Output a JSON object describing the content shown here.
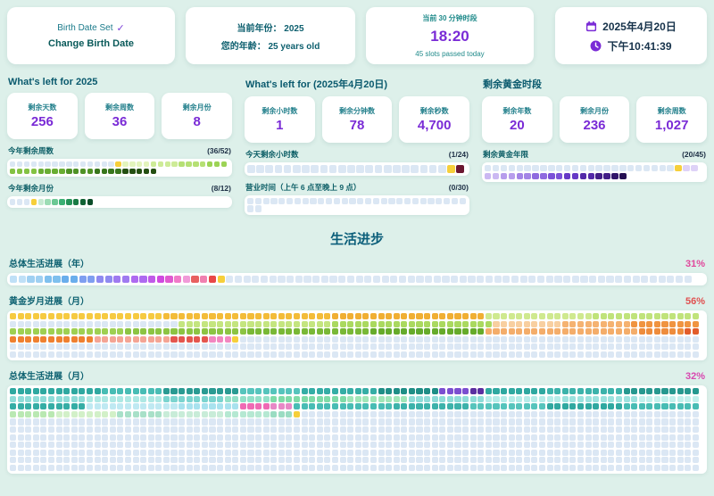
{
  "colors": {
    "background": "#ddf0ea",
    "accent_purple": "#7a2bd6",
    "teal_text": "#0d6670",
    "pale_cell": "#dbe7f4",
    "current_yellow": "#f6cf3a"
  },
  "top": {
    "birth_card": {
      "status": "Birth Date Set",
      "check": "✓",
      "button": "Change Birth Date"
    },
    "year_card": {
      "line1_label": "当前年份：",
      "line1_value": "2025",
      "line2_label": "您的年龄：",
      "line2_value": "25 years old"
    },
    "slot_card": {
      "label": "当前 30 分钟时段",
      "time": "18:20",
      "sub": "45 slots passed today"
    },
    "date_card": {
      "date": "2025年4月20日",
      "time": "下午10:41:39"
    }
  },
  "sections": [
    {
      "title": "What's left for 2025",
      "stats": [
        {
          "label": "剩余天数",
          "value": "256"
        },
        {
          "label": "剩余周数",
          "value": "36"
        },
        {
          "label": "剩余月份",
          "value": "8"
        }
      ],
      "grid1_label": "今年剩余周数",
      "grid1_count": "(36/52)",
      "grid2_label": "今年剩余月份",
      "grid2_count": "(8/12)"
    },
    {
      "title": "What's left for (2025年4月20日)",
      "stats": [
        {
          "label": "剩余小时数",
          "value": "1"
        },
        {
          "label": "剩余分钟数",
          "value": "78"
        },
        {
          "label": "剩余秒数",
          "value": "4,700"
        }
      ],
      "grid1_label": "今天剩余小时数",
      "grid1_count": "(1/24)",
      "grid2_label": "营业时间（上午 6 点至晚上 9 点）",
      "grid2_count": "(0/30)"
    },
    {
      "title": "剩余黄金时段",
      "stats": [
        {
          "label": "剩余年数",
          "value": "20"
        },
        {
          "label": "剩余月份",
          "value": "236"
        },
        {
          "label": "剩余周数",
          "value": "1,027"
        }
      ],
      "grid1_label": "剩余黄金年限",
      "grid1_count": "(20/45)"
    }
  ],
  "life": {
    "title": "生活进步",
    "blocks": [
      {
        "label": "总体生活进展（年）",
        "percent": "31%",
        "percent_color": "#e0489c"
      },
      {
        "label": "黄金岁月进展（月）",
        "percent": "56%",
        "percent_color": "#e05050"
      },
      {
        "label": "总体生活进展（月）",
        "percent": "32%",
        "percent_color": "#d848b0"
      }
    ]
  },
  "grids": {
    "weeks": {
      "rows": [
        [
          [
            15,
            "#dbe7f4"
          ],
          [
            1,
            "#f6cf3a"
          ],
          [
            4,
            "#e3f4bc"
          ],
          [
            4,
            "#cdeb97"
          ],
          [
            4,
            "#b5e074"
          ],
          [
            3,
            "#9cd355"
          ]
        ],
        [
          [
            4,
            "#83c243"
          ],
          [
            4,
            "#69ad33"
          ],
          [
            4,
            "#4f9226"
          ],
          [
            4,
            "#38761c"
          ],
          [
            5,
            "#244f12"
          ]
        ]
      ]
    },
    "months": {
      "rows": [
        [
          [
            3,
            "#dbe7f4"
          ],
          [
            1,
            "#f6cf3a"
          ],
          [
            1,
            "#c6ead2"
          ],
          [
            1,
            "#9cdcb4"
          ],
          [
            1,
            "#6cc894"
          ],
          [
            1,
            "#3cb074"
          ],
          [
            1,
            "#259258"
          ],
          [
            1,
            "#187a44"
          ],
          [
            1,
            "#106234"
          ],
          [
            1,
            "#0b4c28"
          ]
        ]
      ]
    },
    "hours": {
      "rows": [
        [
          [
            22,
            "#dbe7f4"
          ],
          [
            1,
            "#f6cf3a"
          ],
          [
            1,
            "#6b1630"
          ]
        ]
      ]
    },
    "business": {
      "rows": [
        [
          [
            28,
            "#dbe7f4"
          ]
        ],
        [
          [
            2,
            "#dbe7f4"
          ]
        ]
      ]
    },
    "golden_years": {
      "rows": [
        [
          [
            24,
            "#dbe7f4"
          ],
          [
            1,
            "#f6cf3a"
          ],
          [
            2,
            "#ded2f7"
          ]
        ],
        [
          [
            2,
            "#cbb8f2"
          ],
          [
            2,
            "#b79dec"
          ],
          [
            2,
            "#a384e6"
          ],
          [
            2,
            "#8f6adf"
          ],
          [
            2,
            "#7b51d8"
          ],
          [
            2,
            "#6639c6"
          ],
          [
            2,
            "#5329a8"
          ],
          [
            2,
            "#421e87"
          ],
          [
            1,
            "#31156a"
          ],
          [
            1,
            "#250f52"
          ]
        ]
      ]
    },
    "life_years": {
      "rows": [
        [
          [
            2,
            "#bfe0f7"
          ],
          [
            2,
            "#9fd0f2"
          ],
          [
            2,
            "#7fc0ee"
          ],
          [
            2,
            "#6aaeec"
          ],
          [
            2,
            "#7f9ef0"
          ],
          [
            2,
            "#8f8af0"
          ],
          [
            2,
            "#9f7af0"
          ],
          [
            2,
            "#ae6af0"
          ],
          [
            1,
            "#c05ae8"
          ],
          [
            1,
            "#d04ae0"
          ],
          [
            1,
            "#e05ad0"
          ],
          [
            1,
            "#f07ac8"
          ],
          [
            1,
            "#f09ad8"
          ],
          [
            1,
            "#e86060"
          ],
          [
            1,
            "#f080b0"
          ],
          [
            1,
            "#e84848"
          ],
          [
            1,
            "#f6cf3a"
          ],
          [
            54,
            "#dbe7f4"
          ]
        ]
      ]
    },
    "golden_months": {
      "rows": [
        [
          [
            20,
            "#f6ca41"
          ],
          [
            22,
            "#f3bc39"
          ],
          [
            20,
            "#f0af33"
          ],
          [
            14,
            "#cfe98f"
          ],
          [
            14,
            "#c0e37b"
          ]
        ],
        [
          [
            22,
            "#dbe7f4"
          ],
          [
            20,
            "#c4e57f"
          ],
          [
            21,
            "#aad95f"
          ],
          [
            9,
            "#f8cfa0"
          ],
          [
            9,
            "#f5b271"
          ],
          [
            9,
            "#f09440"
          ]
        ],
        [
          [
            15,
            "#9ed052"
          ],
          [
            16,
            "#8cc443"
          ],
          [
            16,
            "#79b836"
          ],
          [
            15,
            "#66ab2a"
          ],
          [
            20,
            "#f4ad6a"
          ],
          [
            6,
            "#ee8c3c"
          ],
          [
            2,
            "#e25c2a"
          ]
        ],
        [
          [
            11,
            "#ef8030"
          ],
          [
            10,
            "#f4a494"
          ],
          [
            5,
            "#e4564e"
          ],
          [
            3,
            "#f287c0"
          ],
          [
            1,
            "#f6cf3a"
          ],
          [
            60,
            "#dbe7f4"
          ]
        ],
        [
          [
            90,
            "#dbe7f4"
          ]
        ],
        [
          [
            90,
            "#dbe7f4"
          ]
        ]
      ]
    },
    "life_months": {
      "rows": [
        [
          [
            12,
            "#2fa8a0"
          ],
          [
            8,
            "#48bcb4"
          ],
          [
            10,
            "#2a9a92"
          ],
          [
            8,
            "#56c4bc"
          ],
          [
            10,
            "#35ada5"
          ],
          [
            8,
            "#1f8e86"
          ],
          [
            4,
            "#7b4fd0"
          ],
          [
            2,
            "#5b2fa0"
          ],
          [
            8,
            "#2fa8a0"
          ],
          [
            10,
            "#3cb2aa"
          ],
          [
            10,
            "#27988f"
          ]
        ],
        [
          [
            10,
            "#8fdcd8"
          ],
          [
            10,
            "#aee8e4"
          ],
          [
            8,
            "#7bd4cf"
          ],
          [
            6,
            "#93e0c8"
          ],
          [
            10,
            "#7fdba8"
          ],
          [
            8,
            "#a0e6b8"
          ],
          [
            10,
            "#8fdcd8"
          ],
          [
            10,
            "#b5ece8"
          ],
          [
            10,
            "#9ce2de"
          ],
          [
            8,
            "#c2f0ec"
          ]
        ],
        [
          [
            10,
            "#35ada5"
          ],
          [
            12,
            "#bfe9f2"
          ],
          [
            8,
            "#a8e2ee"
          ],
          [
            4,
            "#ef6ab4"
          ],
          [
            3,
            "#e788c6"
          ],
          [
            13,
            "#48bcb4"
          ],
          [
            10,
            "#3cb2aa"
          ],
          [
            10,
            "#56c4bc"
          ],
          [
            10,
            "#2fa8a0"
          ],
          [
            10,
            "#48bcb4"
          ]
        ],
        [
          [
            6,
            "#b9e8b2"
          ],
          [
            8,
            "#d2f0c8"
          ],
          [
            6,
            "#a8e0c8"
          ],
          [
            8,
            "#c8ecd8"
          ],
          [
            6,
            "#b5e8d2"
          ],
          [
            3,
            "#9adcc2"
          ],
          [
            1,
            "#f6cf3a"
          ],
          [
            52,
            "#dbe7f4"
          ]
        ],
        [
          [
            90,
            "#dbe7f4"
          ]
        ],
        [
          [
            90,
            "#dbe7f4"
          ]
        ],
        [
          [
            90,
            "#dbe7f4"
          ]
        ],
        [
          [
            90,
            "#dbe7f4"
          ]
        ],
        [
          [
            90,
            "#dbe7f4"
          ]
        ],
        [
          [
            90,
            "#dbe7f4"
          ]
        ],
        [
          [
            90,
            "#dbe7f4"
          ]
        ]
      ]
    }
  }
}
